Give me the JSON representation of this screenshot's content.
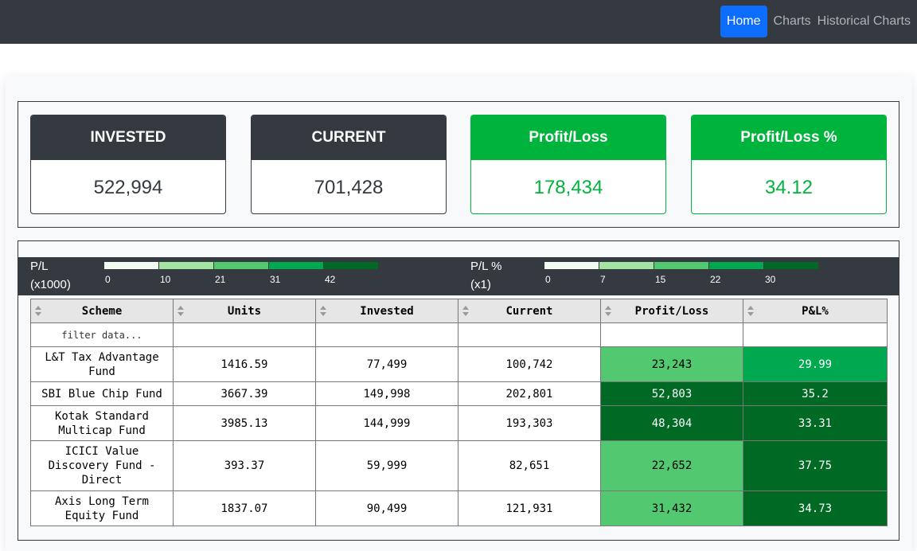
{
  "nav": {
    "items": [
      {
        "label": "Home",
        "active": true
      },
      {
        "label": "Charts",
        "active": false
      },
      {
        "label": "Historical Charts",
        "active": false
      }
    ]
  },
  "summary": {
    "invested": {
      "title": "INVESTED",
      "value": "522,994"
    },
    "current": {
      "title": "CURRENT",
      "value": "701,428"
    },
    "profit_loss": {
      "title": "Profit/Loss",
      "value": "178,434"
    },
    "profit_loss_pct": {
      "title": "Profit/Loss %",
      "value": "34.12"
    }
  },
  "legend": {
    "pl": {
      "title_line1": "P/L",
      "title_line2": "(x1000)",
      "ticks": [
        "0",
        "10",
        "21",
        "31",
        "42"
      ],
      "colors": [
        "#f2fdf2",
        "#a3e4a3",
        "#52c870",
        "#00a94f",
        "#006a25"
      ]
    },
    "pl_pct": {
      "title_line1": "P/L %",
      "title_line2": "(x1)",
      "ticks": [
        "0",
        "7",
        "15",
        "22",
        "30"
      ],
      "colors": [
        "#f2fdf2",
        "#a3e4a3",
        "#52c870",
        "#00a94f",
        "#006a25"
      ]
    }
  },
  "table": {
    "columns": [
      "Scheme",
      "Units",
      "Invested",
      "Current",
      "Profit/Loss",
      "P&L%"
    ],
    "filter_placeholder": "filter data...",
    "rows": [
      {
        "scheme": "L&T Tax Advantage Fund",
        "units": "1416.59",
        "invested": "77,499",
        "current": "100,742",
        "pl": "23,243",
        "pl_pct": "29.99",
        "pl_color": "#52c870",
        "pl_text": "#000000",
        "pct_color": "#00a94f",
        "pct_text": "#ffffff"
      },
      {
        "scheme": "SBI Blue Chip Fund",
        "units": "3667.39",
        "invested": "149,998",
        "current": "202,801",
        "pl": "52,803",
        "pl_pct": "35.2",
        "pl_color": "#006a25",
        "pl_text": "#ffffff",
        "pct_color": "#006a25",
        "pct_text": "#ffffff"
      },
      {
        "scheme": "Kotak Standard Multicap Fund",
        "units": "3985.13",
        "invested": "144,999",
        "current": "193,303",
        "pl": "48,304",
        "pl_pct": "33.31",
        "pl_color": "#006a25",
        "pl_text": "#ffffff",
        "pct_color": "#006a25",
        "pct_text": "#ffffff"
      },
      {
        "scheme": "ICICI Value Discovery Fund - Direct",
        "units": "393.37",
        "invested": "59,999",
        "current": "82,651",
        "pl": "22,652",
        "pl_pct": "37.75",
        "pl_color": "#52c870",
        "pl_text": "#000000",
        "pct_color": "#006a25",
        "pct_text": "#ffffff"
      },
      {
        "scheme": "Axis Long Term Equity Fund",
        "units": "1837.07",
        "invested": "90,499",
        "current": "121,931",
        "pl": "31,432",
        "pl_pct": "34.73",
        "pl_color": "#52c870",
        "pl_text": "#000000",
        "pct_color": "#006a25",
        "pct_text": "#ffffff"
      }
    ]
  }
}
